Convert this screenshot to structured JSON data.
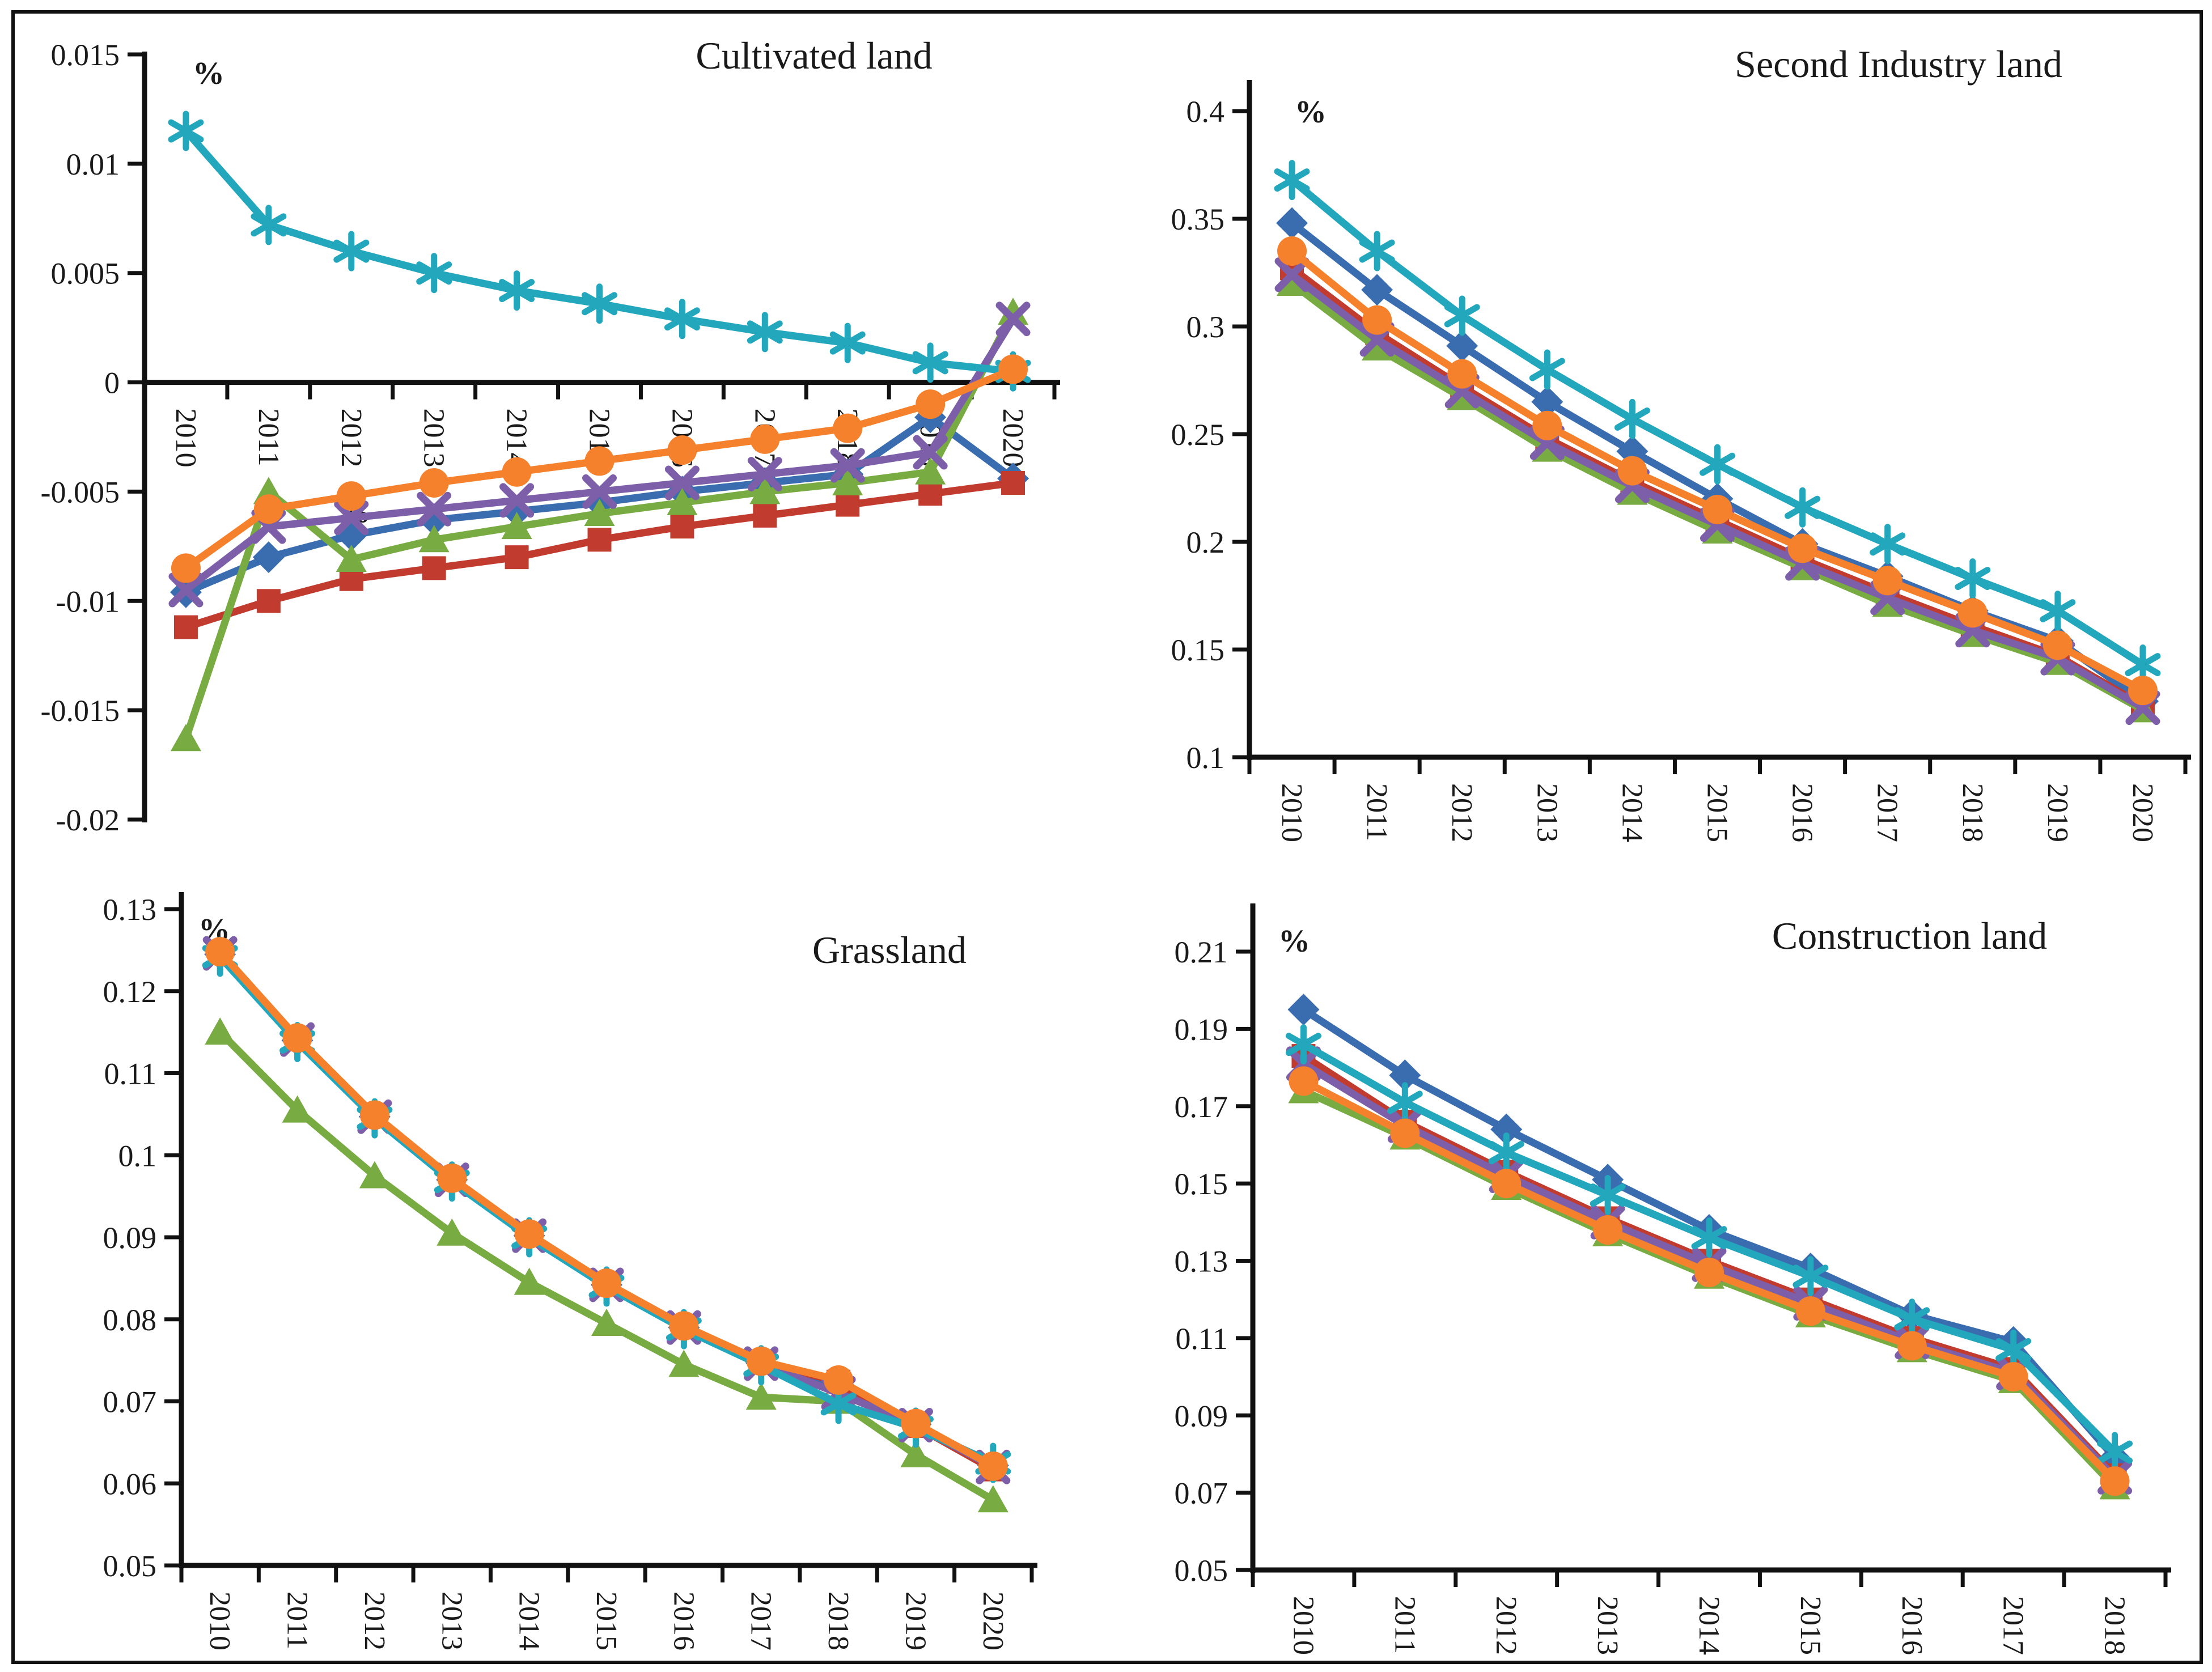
{
  "figure": {
    "background": "#ffffff",
    "border_color": "#111111",
    "text_color": "#1a1a1a",
    "palette": {
      "blue": "#3A6DB0",
      "red": "#C13B2E",
      "green": "#78AB41",
      "purple": "#7D5FA9",
      "teal": "#23A7BC",
      "orange": "#F5812C"
    }
  },
  "chart_data": [
    {
      "type": "line",
      "id": "cultivated-land",
      "title": "Cultivated land",
      "ylabel": "%",
      "xlabel": "",
      "grid": false,
      "legend": "none",
      "x_axis_at_zero": true,
      "ylim": [
        -0.02,
        0.015
      ],
      "y_ticks": [
        "0.015",
        "0.01",
        "0.005",
        "0",
        "-0.005",
        "-0.01",
        "-0.015",
        "-0.02"
      ],
      "categories": [
        "2010",
        "2011",
        "2012",
        "2013",
        "2014",
        "2015",
        "2016",
        "2017",
        "2018",
        "2019",
        "2020"
      ],
      "annotations": [
        {
          "text": "%",
          "year_index": 2.05,
          "value": -0.0064
        }
      ],
      "series": [
        {
          "name": "blue-diamond",
          "marker": "diamond",
          "color": "blue",
          "values": [
            -0.0096,
            -0.008,
            -0.007,
            -0.0063,
            -0.0059,
            -0.0055,
            -0.005,
            -0.0046,
            -0.0042,
            -0.0016,
            -0.0044
          ]
        },
        {
          "name": "red-square",
          "marker": "square",
          "color": "red",
          "values": [
            -0.0112,
            -0.01,
            -0.009,
            -0.0085,
            -0.008,
            -0.0072,
            -0.0066,
            -0.0061,
            -0.0056,
            -0.0051,
            -0.0046
          ]
        },
        {
          "name": "green-triangle",
          "marker": "triangle",
          "color": "green",
          "values": [
            -0.0163,
            -0.005,
            -0.0081,
            -0.0072,
            -0.0066,
            -0.006,
            -0.0055,
            -0.005,
            -0.0046,
            -0.0041,
            0.0032
          ]
        },
        {
          "name": "purple-x",
          "marker": "x",
          "color": "purple",
          "values": [
            -0.0095,
            -0.0066,
            -0.0062,
            -0.0058,
            -0.0054,
            -0.005,
            -0.0046,
            -0.0042,
            -0.0038,
            -0.0032,
            0.0029
          ]
        },
        {
          "name": "teal-asterisk",
          "marker": "asterisk",
          "color": "teal",
          "values": [
            0.0115,
            0.0072,
            0.006,
            0.005,
            0.0042,
            0.0036,
            0.0029,
            0.0023,
            0.0018,
            0.0009,
            0.0005
          ]
        },
        {
          "name": "orange-circle",
          "marker": "circle",
          "color": "orange",
          "values": [
            -0.0085,
            -0.0058,
            -0.0052,
            -0.0046,
            -0.0041,
            -0.0036,
            -0.0031,
            -0.0026,
            -0.0021,
            -0.001,
            0.0006
          ]
        }
      ]
    },
    {
      "type": "line",
      "id": "second-industry-land",
      "title": "Second Industry land",
      "ylabel": "%",
      "xlabel": "",
      "grid": false,
      "legend": "none",
      "x_axis_at_zero": false,
      "ylim": [
        0.1,
        0.4
      ],
      "y_ticks": [
        "0.4",
        "0.35",
        "0.3",
        "0.25",
        "0.2",
        "0.15",
        "0.1"
      ],
      "categories": [
        "2010",
        "2011",
        "2012",
        "2013",
        "2014",
        "2015",
        "2016",
        "2017",
        "2018",
        "2019",
        "2020"
      ],
      "annotations": [],
      "series": [
        {
          "name": "blue-diamond",
          "marker": "diamond",
          "color": "blue",
          "values": [
            0.348,
            0.317,
            0.291,
            0.265,
            0.242,
            0.22,
            0.199,
            0.184,
            0.168,
            0.154,
            0.126
          ]
        },
        {
          "name": "red-square",
          "marker": "square",
          "color": "red",
          "values": [
            0.327,
            0.297,
            0.272,
            0.248,
            0.228,
            0.21,
            0.192,
            0.176,
            0.161,
            0.147,
            0.124
          ]
        },
        {
          "name": "green-triangle",
          "marker": "triangle",
          "color": "green",
          "values": [
            0.32,
            0.29,
            0.267,
            0.243,
            0.223,
            0.205,
            0.188,
            0.171,
            0.157,
            0.144,
            0.122
          ]
        },
        {
          "name": "purple-x",
          "marker": "x",
          "color": "purple",
          "values": [
            0.324,
            0.294,
            0.27,
            0.246,
            0.226,
            0.208,
            0.19,
            0.174,
            0.159,
            0.146,
            0.123
          ]
        },
        {
          "name": "teal-asterisk",
          "marker": "asterisk",
          "color": "teal",
          "values": [
            0.368,
            0.335,
            0.305,
            0.28,
            0.257,
            0.236,
            0.216,
            0.199,
            0.183,
            0.168,
            0.143
          ]
        },
        {
          "name": "orange-circle",
          "marker": "circle",
          "color": "orange",
          "values": [
            0.335,
            0.303,
            0.278,
            0.254,
            0.233,
            0.215,
            0.197,
            0.182,
            0.167,
            0.152,
            0.131
          ]
        }
      ]
    },
    {
      "type": "line",
      "id": "grassland",
      "title": "Grassland",
      "ylabel": "%",
      "xlabel": "",
      "grid": false,
      "legend": "none",
      "x_axis_at_zero": false,
      "ylim": [
        0.05,
        0.13
      ],
      "y_ticks": [
        "0.13",
        "0.12",
        "0.11",
        "0.1",
        "0.09",
        "0.08",
        "0.07",
        "0.06",
        "0.05"
      ],
      "categories": [
        "2010",
        "2011",
        "2012",
        "2013",
        "2014",
        "2015",
        "2016",
        "2017",
        "2018",
        "2019",
        "2020"
      ],
      "annotations": [],
      "series": [
        {
          "name": "blue-diamond",
          "marker": "diamond",
          "color": "blue",
          "values": [
            0.1245,
            0.114,
            0.1047,
            0.097,
            0.0902,
            0.0842,
            0.079,
            0.0747,
            0.072,
            0.0672,
            0.0622
          ]
        },
        {
          "name": "red-square",
          "marker": "square",
          "color": "red",
          "values": [
            0.1247,
            0.1142,
            0.1048,
            0.0971,
            0.0903,
            0.0843,
            0.0791,
            0.0748,
            0.0724,
            0.067,
            0.0617
          ]
        },
        {
          "name": "green-triangle",
          "marker": "triangle",
          "color": "green",
          "values": [
            0.115,
            0.1055,
            0.0975,
            0.0905,
            0.0845,
            0.0795,
            0.0745,
            0.0705,
            0.07,
            0.0635,
            0.058
          ]
        },
        {
          "name": "purple-x",
          "marker": "x",
          "color": "purple",
          "values": [
            0.1246,
            0.1141,
            0.1047,
            0.097,
            0.0902,
            0.0842,
            0.079,
            0.0746,
            0.071,
            0.0671,
            0.062
          ]
        },
        {
          "name": "teal-asterisk",
          "marker": "asterisk",
          "color": "teal",
          "values": [
            0.1242,
            0.1138,
            0.1045,
            0.0968,
            0.09,
            0.084,
            0.0788,
            0.0744,
            0.0697,
            0.0668,
            0.0625
          ]
        },
        {
          "name": "orange-circle",
          "marker": "circle",
          "color": "orange",
          "values": [
            0.1248,
            0.1143,
            0.1049,
            0.0972,
            0.0904,
            0.0844,
            0.0792,
            0.0749,
            0.0726,
            0.0673,
            0.0621
          ]
        }
      ]
    },
    {
      "type": "line",
      "id": "construction-land",
      "title": "Construction land",
      "ylabel": "%",
      "xlabel": "",
      "grid": false,
      "legend": "none",
      "x_axis_at_zero": false,
      "ylim": [
        0.05,
        0.21
      ],
      "y_ticks": [
        "0.21",
        "0.19",
        "0.17",
        "0.15",
        "0.13",
        "0.11",
        "0.09",
        "0.07",
        "0.05"
      ],
      "categories": [
        "2010",
        "2011",
        "2012",
        "2013",
        "2014",
        "2015",
        "2016",
        "2017",
        "2018"
      ],
      "annotations": [],
      "series": [
        {
          "name": "blue-diamond",
          "marker": "diamond",
          "color": "blue",
          "values": [
            0.195,
            0.178,
            0.164,
            0.151,
            0.138,
            0.128,
            0.116,
            0.109,
            0.079
          ]
        },
        {
          "name": "red-square",
          "marker": "square",
          "color": "red",
          "values": [
            0.183,
            0.166,
            0.153,
            0.141,
            0.13,
            0.12,
            0.11,
            0.102,
            0.0745
          ]
        },
        {
          "name": "green-triangle",
          "marker": "triangle",
          "color": "green",
          "values": [
            0.174,
            0.162,
            0.149,
            0.137,
            0.126,
            0.116,
            0.107,
            0.099,
            0.0715
          ]
        },
        {
          "name": "purple-x",
          "marker": "x",
          "color": "purple",
          "values": [
            0.181,
            0.165,
            0.152,
            0.14,
            0.129,
            0.119,
            0.109,
            0.101,
            0.074
          ]
        },
        {
          "name": "teal-asterisk",
          "marker": "asterisk",
          "color": "teal",
          "values": [
            0.186,
            0.171,
            0.158,
            0.147,
            0.136,
            0.126,
            0.115,
            0.107,
            0.0805
          ]
        },
        {
          "name": "orange-circle",
          "marker": "circle",
          "color": "orange",
          "values": [
            0.1765,
            0.163,
            0.15,
            0.138,
            0.127,
            0.117,
            0.108,
            0.1,
            0.073
          ]
        }
      ]
    }
  ]
}
